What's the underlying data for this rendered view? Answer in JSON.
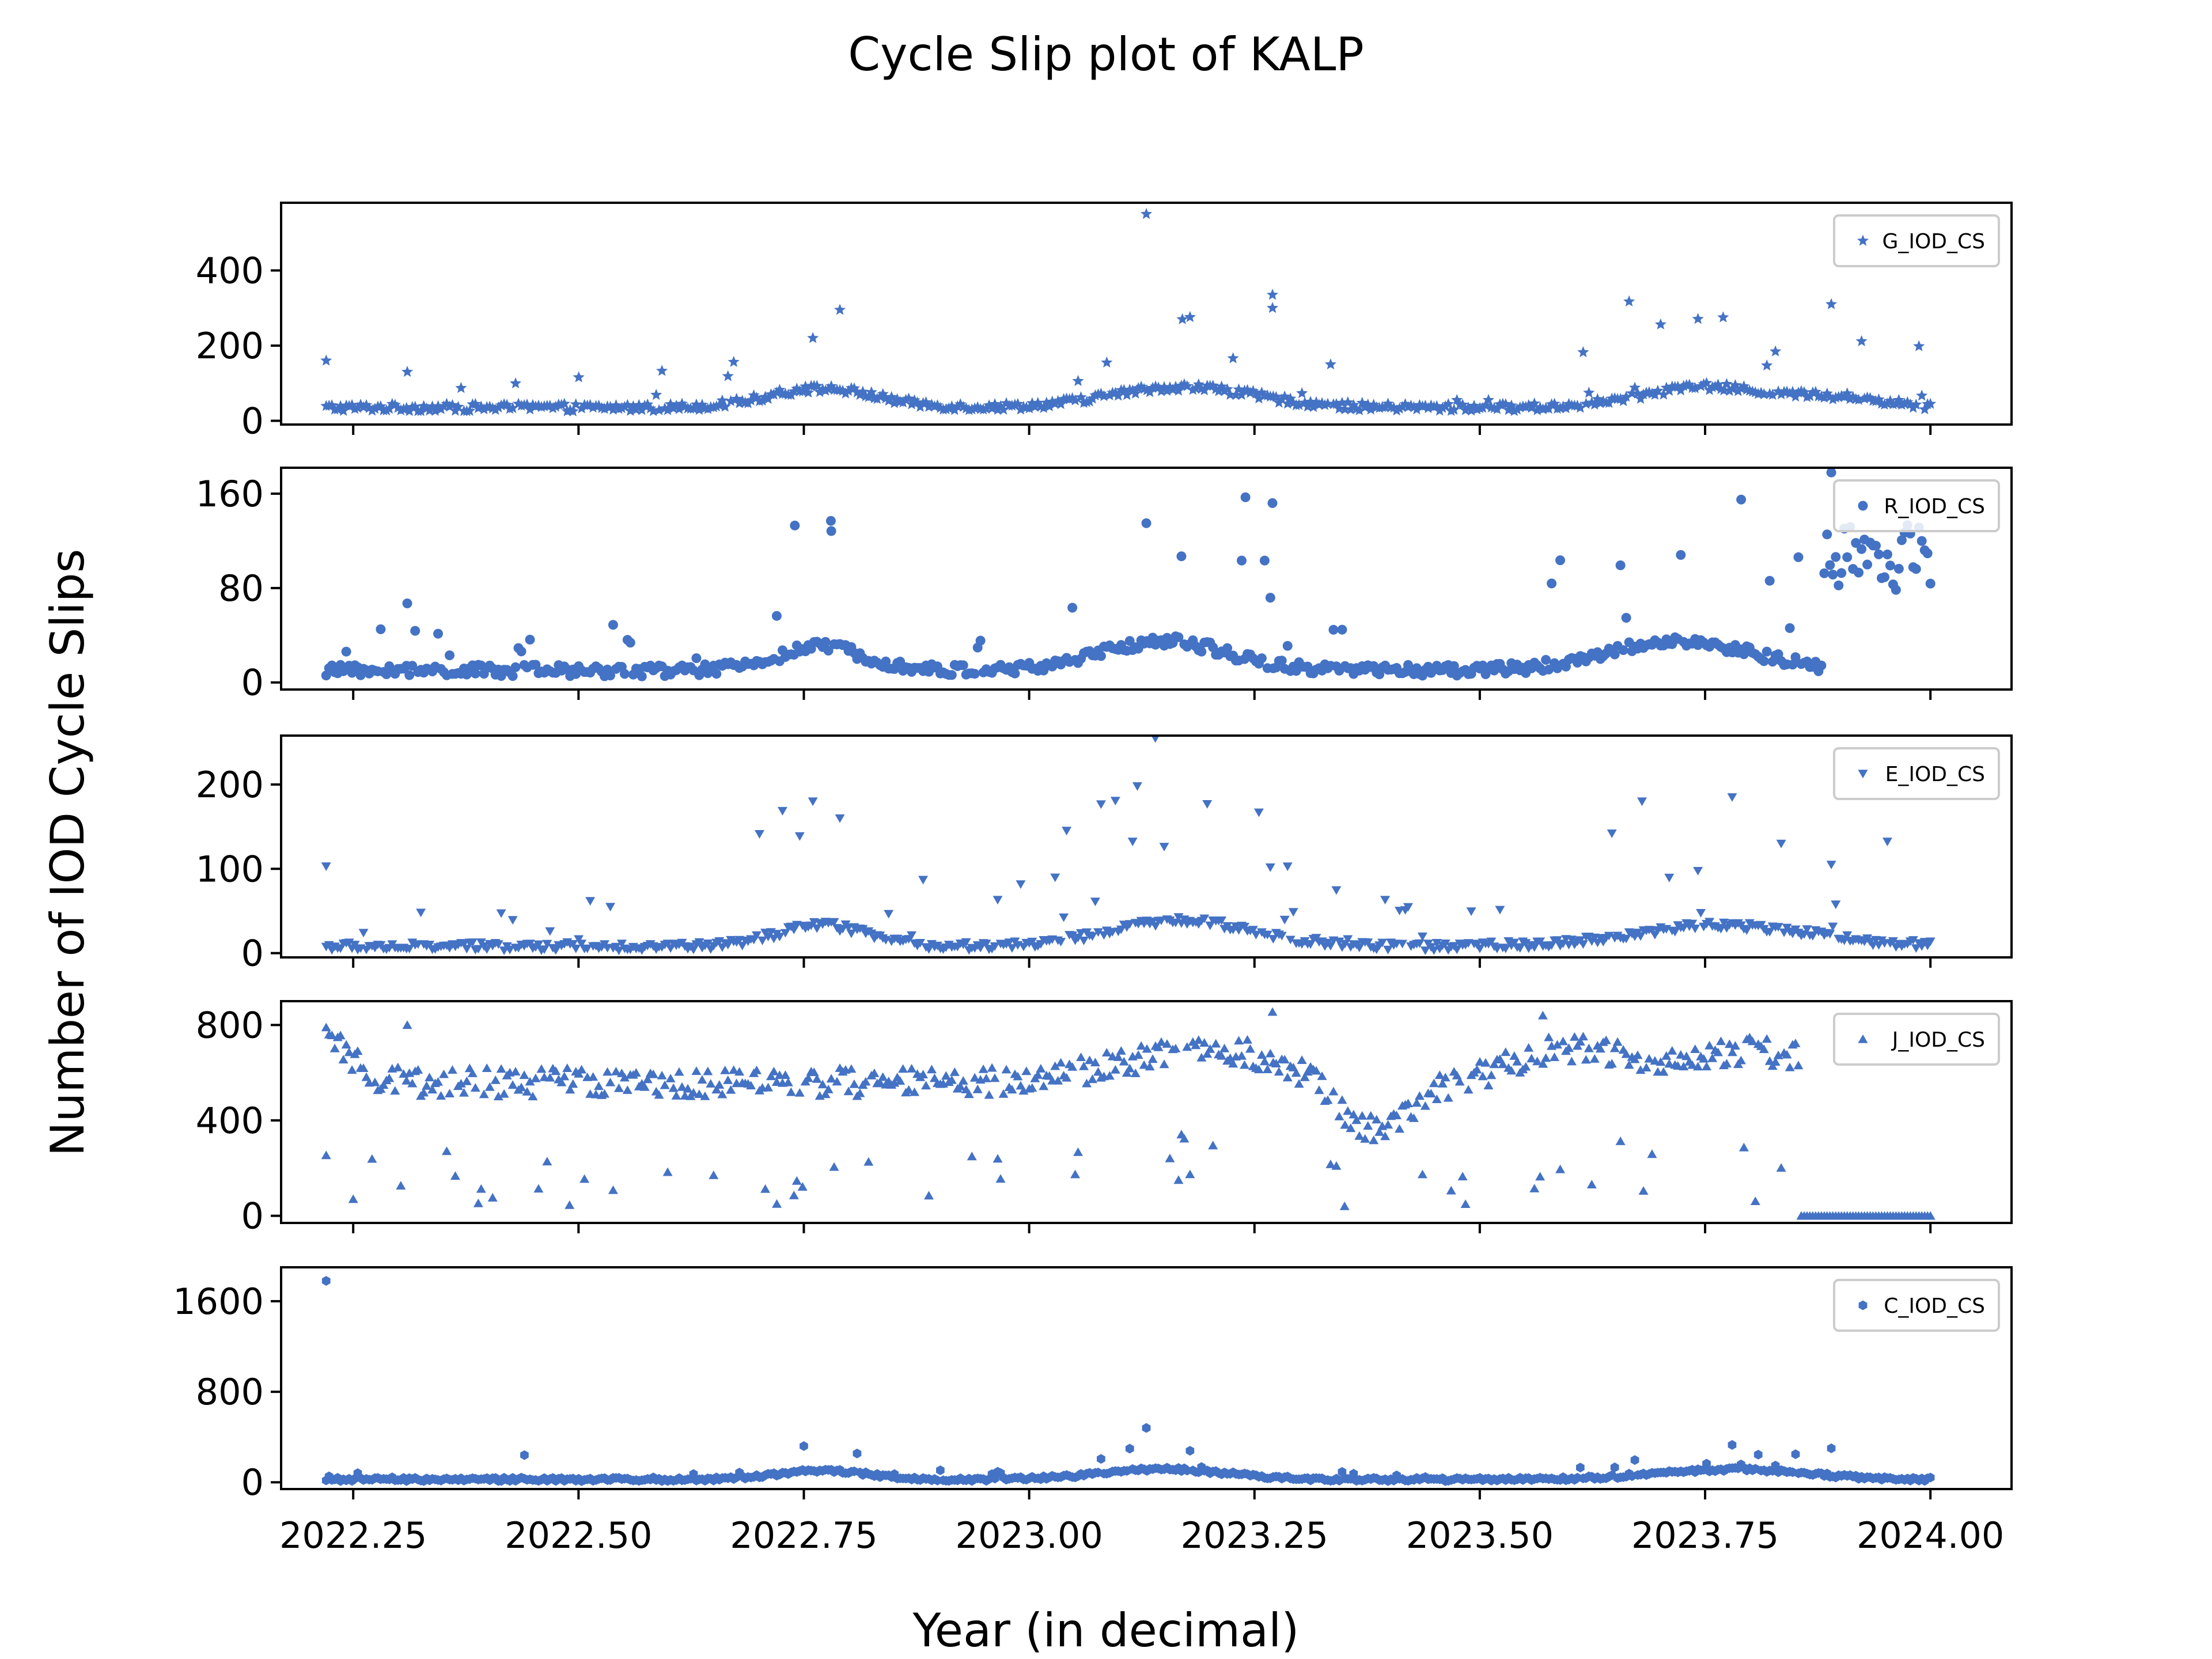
{
  "figure": {
    "title": "Cycle Slip plot of KALP",
    "xlabel": "Year (in decimal)",
    "ylabel": "Number of IOD Cycle Slips"
  },
  "colors": {
    "marker": "#4472c4",
    "axis": "#000000",
    "legend_border": "#cccccc"
  },
  "chart_data": [
    {
      "type": "scatter",
      "series": [
        {
          "name": "G_IOD_CS",
          "marker": "star"
        }
      ],
      "ylim": [
        -10,
        580
      ],
      "xlim": [
        2022.17,
        2024.09
      ],
      "yticks": [
        0,
        200,
        400
      ],
      "xticks": [
        2022.25,
        2022.5,
        2022.75,
        2023.0,
        2023.25,
        2023.5,
        2023.75,
        2024.0
      ],
      "xtick_labels": [],
      "legend": "top-right",
      "gen": {
        "base": 35,
        "waves": [
          [
            2022.77,
            0.06,
            50
          ],
          [
            2023.17,
            0.08,
            55
          ],
          [
            2023.75,
            0.07,
            55
          ],
          [
            2023.9,
            0.05,
            25
          ]
        ],
        "noise": 10,
        "spike_prob": 0.06,
        "spike_max": 250,
        "dip": 0,
        "points": [
          [
            2022.22,
            160
          ],
          [
            2022.31,
            130
          ],
          [
            2022.76,
            220
          ],
          [
            2022.79,
            295
          ],
          [
            2023.13,
            550
          ],
          [
            2023.17,
            270
          ],
          [
            2023.27,
            335
          ],
          [
            2023.27,
            300
          ],
          [
            2023.77,
            275
          ],
          [
            2023.89,
            310
          ]
        ]
      }
    },
    {
      "type": "scatter",
      "series": [
        {
          "name": "R_IOD_CS",
          "marker": "circle"
        }
      ],
      "ylim": [
        -6,
        182
      ],
      "xlim": [
        2022.17,
        2024.09
      ],
      "yticks": [
        0,
        80,
        160
      ],
      "xticks": [
        2022.25,
        2022.5,
        2022.75,
        2023.0,
        2023.25,
        2023.5,
        2023.75,
        2024.0
      ],
      "xtick_labels": [],
      "legend": "top-right",
      "gen": {
        "base": 10,
        "waves": [
          [
            2022.77,
            0.05,
            20
          ],
          [
            2023.15,
            0.07,
            25
          ],
          [
            2023.72,
            0.08,
            25
          ]
        ],
        "noise": 5,
        "spike_prob": 0.08,
        "spike_max": 110,
        "dip": 0,
        "late_cluster": [
          2023.88,
          2024.0,
          75,
          135
        ],
        "points": [
          [
            2022.31,
            67
          ],
          [
            2022.74,
            133
          ],
          [
            2022.78,
            137
          ],
          [
            2023.13,
            135
          ],
          [
            2023.24,
            157
          ],
          [
            2023.27,
            152
          ],
          [
            2023.79,
            155
          ],
          [
            2023.89,
            178
          ]
        ]
      }
    },
    {
      "type": "scatter",
      "series": [
        {
          "name": "E_IOD_CS",
          "marker": "triangle-down"
        }
      ],
      "ylim": [
        -5,
        258
      ],
      "xlim": [
        2022.17,
        2024.09
      ],
      "yticks": [
        0,
        100,
        200
      ],
      "xticks": [
        2022.25,
        2022.5,
        2022.75,
        2023.0,
        2023.25,
        2023.5,
        2023.75,
        2024.0
      ],
      "xtick_labels": [],
      "legend": "top-right",
      "gen": {
        "base": 8,
        "waves": [
          [
            2022.77,
            0.05,
            25
          ],
          [
            2023.17,
            0.08,
            30
          ],
          [
            2023.77,
            0.1,
            25
          ]
        ],
        "noise": 5,
        "spike_prob": 0.09,
        "spike_max": 160,
        "dip": 0,
        "points": [
          [
            2022.22,
            103
          ],
          [
            2022.76,
            180
          ],
          [
            2022.79,
            160
          ],
          [
            2023.12,
            198
          ],
          [
            2023.14,
            255
          ],
          [
            2023.68,
            180
          ],
          [
            2023.78,
            185
          ],
          [
            2023.89,
            105
          ]
        ]
      }
    },
    {
      "type": "scatter",
      "series": [
        {
          "name": "J_IOD_CS",
          "marker": "triangle-up"
        }
      ],
      "ylim": [
        -30,
        900
      ],
      "xlim": [
        2022.17,
        2024.09
      ],
      "yticks": [
        0,
        400,
        800
      ],
      "xticks": [
        2022.25,
        2022.5,
        2022.75,
        2023.0,
        2023.25,
        2023.5,
        2023.75,
        2024.0
      ],
      "xtick_labels": [],
      "legend": "top-right",
      "gen": {
        "base": 560,
        "waves": [
          [
            2022.22,
            0.03,
            160
          ],
          [
            2023.2,
            0.1,
            130
          ],
          [
            2023.6,
            0.06,
            140
          ],
          [
            2023.8,
            0.08,
            130
          ],
          [
            2023.38,
            0.04,
            -220
          ]
        ],
        "noise": 60,
        "spike_prob": 0.1,
        "spike_max": 0,
        "dip": 1,
        "end_x": 2023.855,
        "zero_from": 2023.855,
        "points": [
          [
            2022.22,
            790
          ],
          [
            2022.31,
            800
          ],
          [
            2023.27,
            855
          ],
          [
            2023.57,
            840
          ],
          [
            2022.25,
            70
          ],
          [
            2022.49,
            45
          ],
          [
            2022.72,
            50
          ],
          [
            2023.35,
            40
          ]
        ]
      }
    },
    {
      "type": "scatter",
      "series": [
        {
          "name": "C_IOD_CS",
          "marker": "hexagon"
        }
      ],
      "ylim": [
        -60,
        1900
      ],
      "xlim": [
        2022.17,
        2024.09
      ],
      "yticks": [
        0,
        800,
        1600
      ],
      "xticks": [
        2022.25,
        2022.5,
        2022.75,
        2023.0,
        2023.25,
        2023.5,
        2023.75,
        2024.0
      ],
      "xtick_labels": [
        "2022.25",
        "2022.50",
        "2022.75",
        "2023.00",
        "2023.25",
        "2023.50",
        "2023.75",
        "2024.00"
      ],
      "legend": "top-right",
      "gen": {
        "base": 25,
        "waves": [
          [
            2022.77,
            0.05,
            80
          ],
          [
            2023.15,
            0.07,
            90
          ],
          [
            2023.78,
            0.08,
            90
          ]
        ],
        "noise": 15,
        "spike_prob": 0.07,
        "spike_max": 200,
        "dip": 0,
        "points": [
          [
            2022.22,
            1780
          ],
          [
            2022.44,
            240
          ],
          [
            2023.13,
            480
          ],
          [
            2023.89,
            300
          ],
          [
            2022.75,
            320
          ],
          [
            2023.78,
            330
          ]
        ]
      }
    }
  ]
}
